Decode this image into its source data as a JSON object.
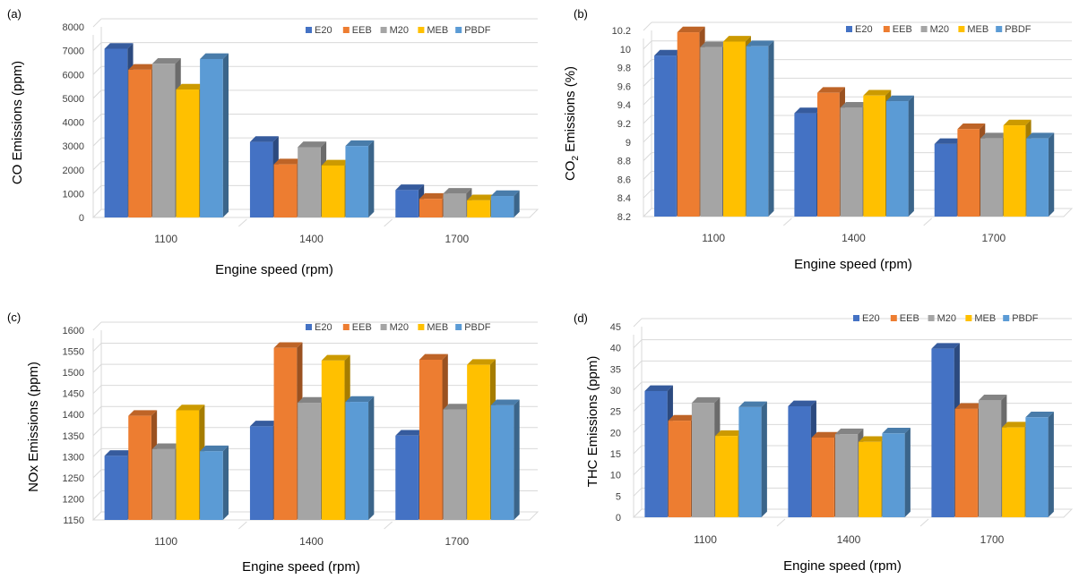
{
  "series_colors": {
    "E20": "#4472c4",
    "EEB": "#ed7d31",
    "M20": "#a5a5a5",
    "MEB": "#ffc000",
    "PBDF": "#5b9bd5"
  },
  "chart_data": [
    {
      "type": "bar",
      "panel": "(a)",
      "title": "",
      "xlabel": "Engine speed (rpm)",
      "ylabel": "CO Emissions (ppm)",
      "ylim": [
        0,
        8000
      ],
      "yticks": [
        "0",
        "1000",
        "2000",
        "3000",
        "4000",
        "5000",
        "6000",
        "7000",
        "8000"
      ],
      "categories": [
        "1100",
        "1400",
        "1700"
      ],
      "legend": "top-right",
      "grid": true,
      "series": [
        {
          "name": "E20",
          "values": [
            7080,
            3170,
            1150
          ]
        },
        {
          "name": "EEB",
          "values": [
            6200,
            2230,
            780
          ]
        },
        {
          "name": "M20",
          "values": [
            6450,
            2950,
            1000
          ]
        },
        {
          "name": "MEB",
          "values": [
            5370,
            2180,
            720
          ]
        },
        {
          "name": "PBDF",
          "values": [
            6650,
            3000,
            900
          ]
        }
      ]
    },
    {
      "type": "bar",
      "panel": "(b)",
      "title": "",
      "xlabel": "Engine speed (rpm)",
      "ylabel_main": "CO",
      "ylabel_sub": "2",
      "ylabel_rest": " Emissions (%)",
      "ylim": [
        8.2,
        10.2
      ],
      "yticks": [
        "8.2",
        "8.4",
        "8.6",
        "8.8",
        "9",
        "9.2",
        "9.4",
        "9.6",
        "9.8",
        "10",
        "10.2"
      ],
      "categories": [
        "1100",
        "1400",
        "1700"
      ],
      "legend": "top-right",
      "grid": true,
      "series": [
        {
          "name": "E20",
          "values": [
            9.93,
            9.31,
            8.98
          ]
        },
        {
          "name": "EEB",
          "values": [
            10.18,
            9.53,
            9.14
          ]
        },
        {
          "name": "M20",
          "values": [
            10.02,
            9.37,
            9.04
          ]
        },
        {
          "name": "MEB",
          "values": [
            10.08,
            9.5,
            9.18
          ]
        },
        {
          "name": "PBDF",
          "values": [
            10.03,
            9.44,
            9.04
          ]
        }
      ]
    },
    {
      "type": "bar",
      "panel": "(c)",
      "title": "",
      "xlabel": "Engine speed (rpm)",
      "ylabel": "NOx Emissions (ppm)",
      "ylim": [
        1150,
        1600
      ],
      "yticks": [
        "1150",
        "1200",
        "1250",
        "1300",
        "1350",
        "1400",
        "1450",
        "1500",
        "1550",
        "1600"
      ],
      "categories": [
        "1100",
        "1400",
        "1700"
      ],
      "legend": "top-right",
      "grid": true,
      "series": [
        {
          "name": "E20",
          "values": [
            1302,
            1372,
            1350
          ]
        },
        {
          "name": "EEB",
          "values": [
            1397,
            1558,
            1530
          ]
        },
        {
          "name": "M20",
          "values": [
            1318,
            1428,
            1412
          ]
        },
        {
          "name": "MEB",
          "values": [
            1410,
            1528,
            1518
          ]
        },
        {
          "name": "PBDF",
          "values": [
            1313,
            1430,
            1422
          ]
        }
      ]
    },
    {
      "type": "bar",
      "panel": "(d)",
      "title": "",
      "xlabel": "Engine speed (rpm)",
      "ylabel": "THC Emissions (ppm)",
      "ylim": [
        0,
        45
      ],
      "yticks": [
        "0",
        "5",
        "10",
        "15",
        "20",
        "25",
        "30",
        "35",
        "40",
        "45"
      ],
      "categories": [
        "1100",
        "1400",
        "1700"
      ],
      "legend": "top-right",
      "grid": true,
      "series": [
        {
          "name": "E20",
          "values": [
            29.8,
            26.2,
            39.8
          ]
        },
        {
          "name": "EEB",
          "values": [
            22.8,
            18.8,
            25.6
          ]
        },
        {
          "name": "M20",
          "values": [
            27,
            19.6,
            27.6
          ]
        },
        {
          "name": "MEB",
          "values": [
            19.2,
            17.8,
            21.2
          ]
        },
        {
          "name": "PBDF",
          "values": [
            26,
            19.8,
            23.6
          ]
        }
      ]
    }
  ]
}
